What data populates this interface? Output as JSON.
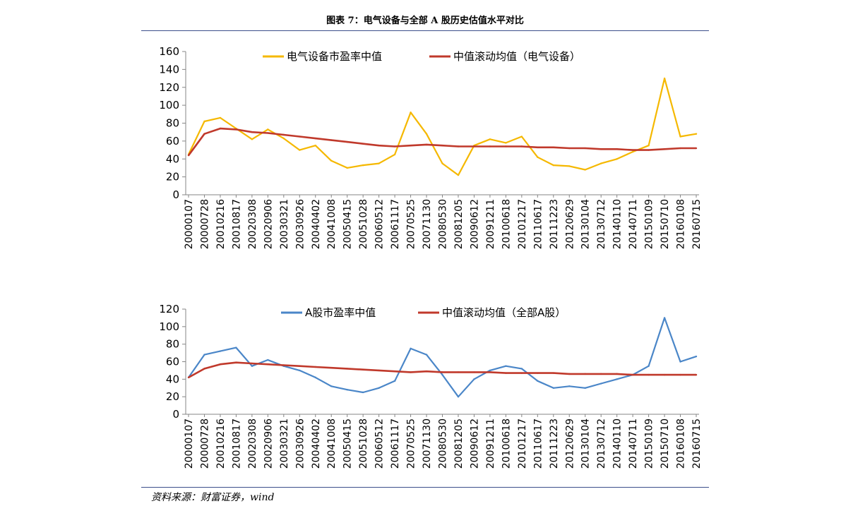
{
  "figure_title": "图表 7：电气设备与全部 A 股历史估值水平对比",
  "source": "资料来源：财富证券，wind",
  "x_ticks": [
    "20000107",
    "20000728",
    "20010216",
    "20010817",
    "20020308",
    "20020906",
    "20030321",
    "20030926",
    "20040402",
    "20041008",
    "20050415",
    "20051028",
    "20060512",
    "20061117",
    "20070525",
    "20071130",
    "20080530",
    "20081205",
    "20090612",
    "20091211",
    "20100618",
    "20101217",
    "20110617",
    "20111223",
    "20120629",
    "20130104",
    "20130712",
    "20140110",
    "20140711",
    "20150109",
    "20150710",
    "20160108",
    "20160715"
  ],
  "chart_data": [
    {
      "type": "line",
      "x": [
        "20000107",
        "20000728",
        "20010216",
        "20010817",
        "20020308",
        "20020906",
        "20030321",
        "20030926",
        "20040402",
        "20041008",
        "20050415",
        "20051028",
        "20060512",
        "20061117",
        "20070525",
        "20071130",
        "20080530",
        "20081205",
        "20090612",
        "20091211",
        "20100618",
        "20101217",
        "20110617",
        "20111223",
        "20120629",
        "20130104",
        "20130712",
        "20140110",
        "20140711",
        "20150109",
        "20150710",
        "20160108",
        "20160715"
      ],
      "ylim": [
        0,
        160
      ],
      "yticks": [
        0,
        20,
        40,
        60,
        80,
        100,
        120,
        140,
        160
      ],
      "legend_position": "top",
      "series": [
        {
          "name": "电气设备市盈率中值",
          "color": "#f5b800",
          "values": [
            45,
            82,
            86,
            74,
            62,
            73,
            63,
            50,
            55,
            38,
            30,
            33,
            35,
            45,
            92,
            68,
            35,
            22,
            55,
            62,
            58,
            65,
            42,
            33,
            32,
            28,
            35,
            40,
            48,
            55,
            130,
            65,
            68
          ]
        },
        {
          "name": "中值滚动均值（电气设备）",
          "color": "#c0392b",
          "values": [
            44,
            68,
            74,
            73,
            70,
            69,
            67,
            65,
            63,
            61,
            59,
            57,
            55,
            54,
            55,
            56,
            55,
            54,
            54,
            54,
            54,
            54,
            53,
            53,
            52,
            52,
            51,
            51,
            50,
            50,
            51,
            52,
            52
          ]
        }
      ]
    },
    {
      "type": "line",
      "x": [
        "20000107",
        "20000728",
        "20010216",
        "20010817",
        "20020308",
        "20020906",
        "20030321",
        "20030926",
        "20040402",
        "20041008",
        "20050415",
        "20051028",
        "20060512",
        "20061117",
        "20070525",
        "20071130",
        "20080530",
        "20081205",
        "20090612",
        "20091211",
        "20100618",
        "20101217",
        "20110617",
        "20111223",
        "20120629",
        "20130104",
        "20130712",
        "20140110",
        "20140711",
        "20150109",
        "20150710",
        "20160108",
        "20160715"
      ],
      "ylim": [
        0,
        120
      ],
      "yticks": [
        0,
        20,
        40,
        60,
        80,
        100,
        120
      ],
      "legend_position": "top",
      "series": [
        {
          "name": "A股市盈率中值",
          "color": "#4a86c8",
          "values": [
            42,
            68,
            72,
            76,
            55,
            62,
            55,
            50,
            42,
            32,
            28,
            25,
            30,
            38,
            75,
            68,
            45,
            20,
            40,
            50,
            55,
            52,
            38,
            30,
            32,
            30,
            35,
            40,
            45,
            55,
            110,
            60,
            66
          ]
        },
        {
          "name": "中值滚动均值（全部A股）",
          "color": "#c0392b",
          "values": [
            42,
            52,
            57,
            59,
            58,
            57,
            56,
            55,
            54,
            53,
            52,
            51,
            50,
            49,
            48,
            49,
            48,
            48,
            48,
            48,
            47,
            47,
            47,
            47,
            46,
            46,
            46,
            46,
            45,
            45,
            45,
            45,
            45
          ]
        }
      ]
    }
  ]
}
